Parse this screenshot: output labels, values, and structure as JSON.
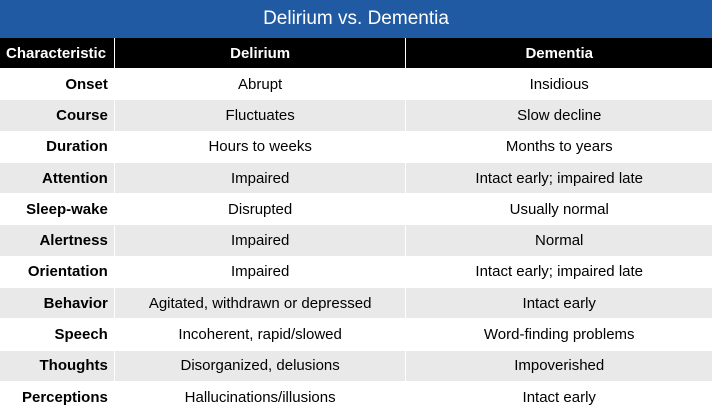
{
  "title": "Delirium vs. Dementia",
  "headers": [
    "Characteristic",
    "Delirium",
    "Dementia"
  ],
  "rows": [
    {
      "characteristic": "Onset",
      "delirium": "Abrupt",
      "dementia": "Insidious"
    },
    {
      "characteristic": "Course",
      "delirium": "Fluctuates",
      "dementia": "Slow decline"
    },
    {
      "characteristic": "Duration",
      "delirium": "Hours to weeks",
      "dementia": "Months to years"
    },
    {
      "characteristic": "Attention",
      "delirium": "Impaired",
      "dementia": "Intact early; impaired late"
    },
    {
      "characteristic": "Sleep-wake",
      "delirium": "Disrupted",
      "dementia": "Usually normal"
    },
    {
      "characteristic": "Alertness",
      "delirium": "Impaired",
      "dementia": "Normal"
    },
    {
      "characteristic": "Orientation",
      "delirium": "Impaired",
      "dementia": "Intact early; impaired late"
    },
    {
      "characteristic": "Behavior",
      "delirium": "Agitated, withdrawn or depressed",
      "dementia": "Intact early"
    },
    {
      "characteristic": "Speech",
      "delirium": "Incoherent, rapid/slowed",
      "dementia": "Word-finding problems"
    },
    {
      "characteristic": "Thoughts",
      "delirium": "Disorganized, delusions",
      "dementia": "Impoverished"
    },
    {
      "characteristic": "Perceptions",
      "delirium": "Hallucinations/illusions",
      "dementia": "Intact early"
    }
  ],
  "colors": {
    "title_bg": "#1f5aa3",
    "header_bg": "#000000",
    "stripe": "#e9e9e9"
  }
}
